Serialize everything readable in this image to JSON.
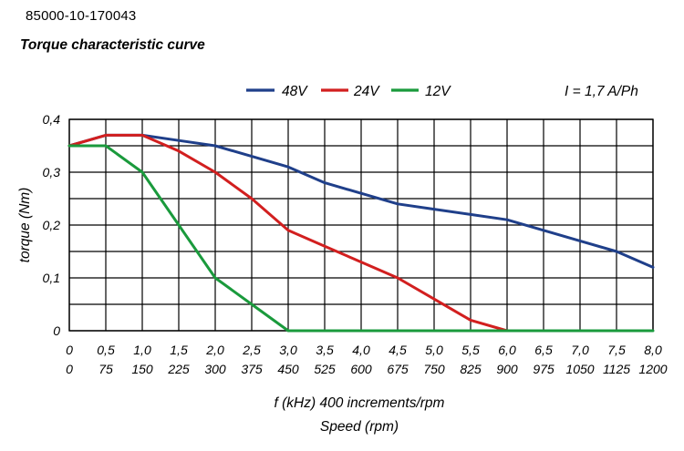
{
  "header": {
    "part_number": "85000-10-170043",
    "title": "Torque characteristic curve"
  },
  "chart_data": {
    "type": "line",
    "annotation": "I = 1,7 A/Ph",
    "ylabel": "torque (Nm)",
    "xlabel_1": "f (kHz) 400 increments/rpm",
    "xlabel_2": "Speed (rpm)",
    "xlim": [
      0,
      8
    ],
    "ylim": [
      0,
      0.4
    ],
    "x_ticks": [
      0,
      0.5,
      1.0,
      1.5,
      2.0,
      2.5,
      3.0,
      3.5,
      4.0,
      4.5,
      5.0,
      5.5,
      6.0,
      6.5,
      7.0,
      7.5,
      8.0
    ],
    "x_tick_labels_khz": [
      "0",
      "0,5",
      "1,0",
      "1,5",
      "2,0",
      "2,5",
      "3,0",
      "3,5",
      "4,0",
      "4,5",
      "5,0",
      "5,5",
      "6,0",
      "6,5",
      "7,0",
      "7,5",
      "8,0"
    ],
    "x_tick_labels_rpm": [
      "0",
      "75",
      "150",
      "225",
      "300",
      "375",
      "450",
      "525",
      "600",
      "675",
      "750",
      "825",
      "900",
      "975",
      "1050",
      "1125",
      "1200"
    ],
    "y_ticks": [
      0,
      0.1,
      0.2,
      0.3,
      0.4
    ],
    "y_tick_labels": [
      "0",
      "0,1",
      "0,2",
      "0,3",
      "0,4"
    ],
    "grid": true,
    "legend_position": "top",
    "series": [
      {
        "name": "48V",
        "color": "#1f3f8a",
        "x": [
          0,
          0.5,
          1.0,
          1.5,
          2.0,
          2.5,
          3.0,
          3.5,
          4.0,
          4.5,
          5.0,
          5.5,
          6.0,
          6.5,
          7.0,
          7.5,
          8.0
        ],
        "y": [
          0.35,
          0.37,
          0.37,
          0.36,
          0.35,
          0.33,
          0.31,
          0.28,
          0.26,
          0.24,
          0.23,
          0.22,
          0.21,
          0.19,
          0.17,
          0.15,
          0.12
        ]
      },
      {
        "name": "24V",
        "color": "#d21f1f",
        "x": [
          0,
          0.5,
          1.0,
          1.5,
          2.0,
          2.5,
          3.0,
          3.5,
          4.0,
          4.5,
          5.0,
          5.5,
          6.0
        ],
        "y": [
          0.35,
          0.37,
          0.37,
          0.34,
          0.3,
          0.25,
          0.19,
          0.16,
          0.13,
          0.1,
          0.06,
          0.02,
          0.0
        ]
      },
      {
        "name": "12V",
        "color": "#1a9a3c",
        "x": [
          0,
          0.5,
          1.0,
          1.5,
          2.0,
          2.5,
          3.0,
          8.0
        ],
        "y": [
          0.35,
          0.35,
          0.3,
          0.2,
          0.1,
          0.05,
          0.0,
          0.0
        ]
      }
    ]
  }
}
